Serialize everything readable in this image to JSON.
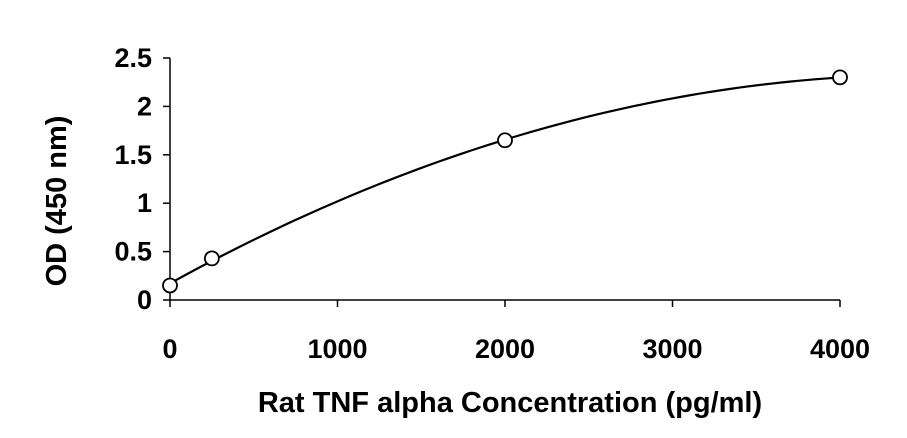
{
  "chart_data": {
    "type": "scatter",
    "title": "",
    "xlabel": "Rat TNF alpha Concentration (pg/ml)",
    "ylabel": "OD (450 nm)",
    "xlim": [
      0,
      4000
    ],
    "ylim": [
      0,
      2.5
    ],
    "x_ticks": [
      0,
      1000,
      2000,
      3000,
      4000
    ],
    "y_ticks": [
      0,
      0.5,
      1,
      1.5,
      2,
      2.5
    ],
    "x_tick_labels": [
      "0",
      "1000",
      "2000",
      "3000",
      "4000"
    ],
    "y_tick_labels": [
      "0",
      "0.5",
      "1",
      "1.5",
      "2",
      "2.5"
    ],
    "grid": false,
    "legend": "none",
    "series": [
      {
        "marker": "open-circle",
        "trendline": "smooth-curve",
        "points": [
          {
            "x": 0,
            "y": 0.15
          },
          {
            "x": 250,
            "y": 0.43
          },
          {
            "x": 2000,
            "y": 1.65
          },
          {
            "x": 4000,
            "y": 2.3
          }
        ]
      }
    ],
    "colors": {
      "line": "#000000",
      "marker": "#000000",
      "axis": "#000000"
    }
  }
}
